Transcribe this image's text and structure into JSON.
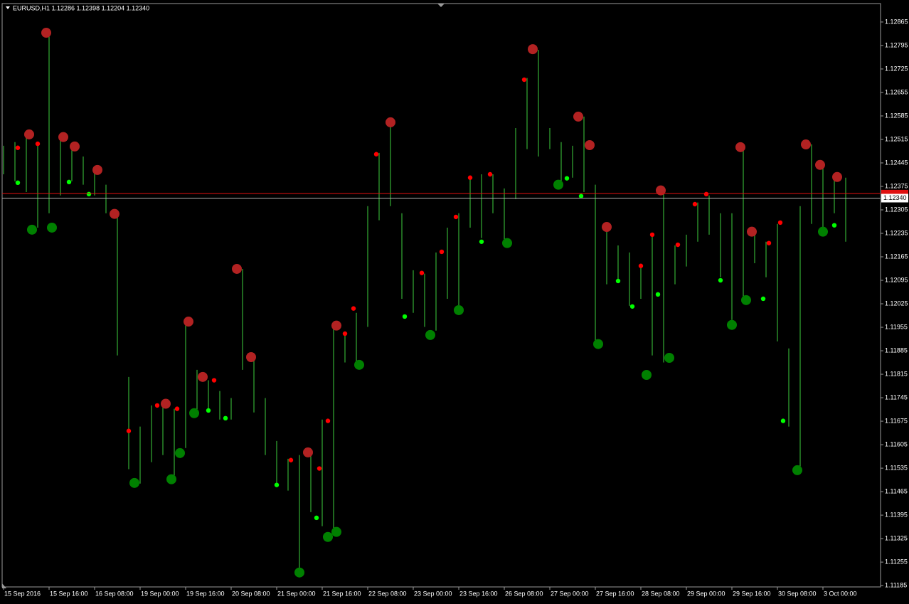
{
  "chart_data": {
    "type": "hlbar",
    "header": "EURUSD,H1  1.12286 1.12398 1.12204 1.12340",
    "color": "#3ecf3e",
    "x": [
      0,
      4,
      8,
      12,
      16,
      20,
      24,
      28,
      32,
      36,
      40,
      44,
      48,
      52,
      56,
      60,
      64,
      68,
      72,
      76,
      80,
      84,
      88,
      92,
      96,
      100,
      104,
      108,
      112,
      116,
      120,
      124,
      128,
      132,
      136,
      140,
      144,
      148,
      152,
      156,
      160,
      164,
      168,
      172,
      176,
      180,
      184,
      188,
      192,
      196,
      200,
      204,
      208,
      212,
      216,
      220,
      224,
      228,
      232,
      236,
      240,
      244,
      248,
      252,
      256,
      260,
      264,
      268,
      272,
      276,
      280,
      284,
      288,
      292,
      296
    ],
    "high": [
      1.12496,
      1.12507,
      1.1253,
      1.12507,
      1.12833,
      1.12517,
      1.12496,
      1.12464,
      1.12433,
      1.1238,
      1.12295,
      1.11807,
      1.11659,
      1.11722,
      1.11733,
      1.11712,
      1.11977,
      1.11828,
      1.11797,
      1.11765,
      1.11744,
      1.12129,
      1.11871,
      1.11744,
      1.11616,
      1.11563,
      1.11574,
      1.11574,
      1.1168,
      1.11956,
      1.11934,
      1.11998,
      1.12316,
      1.12475,
      1.12566,
      1.12295,
      1.12125,
      1.12115,
      1.12178,
      1.12252,
      1.12295,
      1.12401,
      1.12411,
      1.12411,
      1.12369,
      1.12549,
      1.12698,
      1.12782,
      1.12549,
      1.12507,
      1.12496,
      1.12583,
      1.1238,
      1.12252,
      1.12199,
      1.12178,
      1.12136,
      1.12231,
      1.12363,
      1.12199,
      1.12231,
      1.12327,
      1.12348,
      1.12295,
      1.12295,
      1.12492,
      1.1224,
      1.1221,
      1.12263,
      1.11892,
      1.12316,
      1.125,
      1.12439,
      1.12401,
      1.12401
    ],
    "low": [
      1.12411,
      1.1239,
      1.12358,
      1.12252,
      1.12295,
      1.12348,
      1.1239,
      1.1238,
      1.12348,
      1.12295,
      1.11871,
      1.11532,
      1.11489,
      1.11553,
      1.11574,
      1.1151,
      1.11595,
      1.11701,
      1.11712,
      1.1168,
      1.1168,
      1.11828,
      1.11701,
      1.11574,
      1.11489,
      1.11468,
      1.11224,
      1.11404,
      1.11362,
      1.11341,
      1.1185,
      1.1185,
      1.11956,
      1.12274,
      1.12316,
      1.1204,
      1.11998,
      1.11956,
      1.11945,
      1.1204,
      1.12009,
      1.12252,
      1.12221,
      1.12295,
      1.1221,
      1.12337,
      1.12486,
      1.12464,
      1.12486,
      1.1239,
      1.12401,
      1.12358,
      1.11913,
      1.12083,
      1.12093,
      1.12019,
      1.1204,
      1.11871,
      1.1185,
      1.12083,
      1.12136,
      1.1221,
      1.12231,
      1.12104,
      1.11977,
      1.1204,
      1.12146,
      1.12104,
      1.11913,
      1.11659,
      1.11532,
      1.12263,
      1.12252,
      1.12295,
      1.1221
    ],
    "markers": [
      {
        "color": "#b22222",
        "size": "large",
        "x": [
          9,
          15,
          21,
          25,
          33,
          39,
          57,
          65,
          70,
          82,
          87,
          107,
          117,
          136,
          186,
          202,
          206,
          212,
          231,
          259,
          263,
          282,
          287,
          293
        ],
        "values": [
          1.1253,
          1.12833,
          1.12522,
          1.12494,
          1.12424,
          1.12293,
          1.11727,
          1.11972,
          1.11807,
          1.12129,
          1.11866,
          1.11582,
          1.1196,
          1.12566,
          1.12784,
          1.12583,
          1.12498,
          1.12254,
          1.12363,
          1.12492,
          1.1224,
          1.125,
          1.12439,
          1.12403
        ]
      },
      {
        "color": "#008000",
        "size": "large",
        "x": [
          10,
          17,
          46,
          59,
          62,
          67,
          104,
          114,
          117,
          125,
          150,
          160,
          177,
          195,
          209,
          226,
          234,
          256,
          261,
          279,
          288
        ],
        "values": [
          1.12246,
          1.12252,
          1.11491,
          1.11502,
          1.1158,
          1.11699,
          1.11224,
          1.1133,
          1.11345,
          1.11843,
          1.11932,
          1.12006,
          1.12206,
          1.1238,
          1.11905,
          1.11813,
          1.11864,
          1.11962,
          1.12036,
          1.11529,
          1.1224
        ]
      },
      {
        "color": "#ff0000",
        "size": "small",
        "x": [
          5,
          12,
          44,
          54,
          61,
          74,
          101,
          111,
          114,
          120,
          123,
          131,
          147,
          154,
          159,
          164,
          171,
          183,
          224,
          228,
          237,
          243,
          247,
          269,
          273
        ],
        "values": [
          1.1249,
          1.12502,
          1.11646,
          1.11722,
          1.11712,
          1.11797,
          1.11559,
          1.11534,
          1.11676,
          1.11936,
          1.12011,
          1.12471,
          1.12117,
          1.1218,
          1.12284,
          1.12401,
          1.12411,
          1.12693,
          1.12138,
          1.12231,
          1.12201,
          1.12322,
          1.12352,
          1.12206,
          1.12267
        ]
      },
      {
        "color": "#00ff00",
        "size": "small",
        "x": [
          5,
          23,
          30,
          72,
          78,
          96,
          110,
          141,
          168,
          198,
          203,
          216,
          221,
          230,
          252,
          267,
          274,
          292
        ],
        "values": [
          1.12386,
          1.12388,
          1.12352,
          1.11707,
          1.11684,
          1.11485,
          1.11387,
          1.11987,
          1.1221,
          1.12399,
          1.12346,
          1.12093,
          1.12017,
          1.12053,
          1.12095,
          1.1204,
          1.11676,
          1.12259
        ]
      }
    ],
    "ask": 1.12354,
    "bid": {
      "value": 1.1234,
      "label": "1.12340"
    },
    "xlim": [
      -0.5,
      308.25
    ],
    "ylim": [
      1.11181,
      1.1292
    ],
    "yticks": [
      1.12865,
      1.12795,
      1.12725,
      1.12655,
      1.12585,
      1.12515,
      1.12445,
      1.12375,
      1.12305,
      1.12235,
      1.12165,
      1.12095,
      1.12025,
      1.11955,
      1.11885,
      1.11815,
      1.11745,
      1.11675,
      1.11605,
      1.11535,
      1.11465,
      1.11395,
      1.11325,
      1.11255,
      1.11185
    ],
    "xticks": [
      {
        "value": 0,
        "label": "15 Sep 2016"
      },
      {
        "value": 16,
        "label": "15 Sep 16:00"
      },
      {
        "value": 32,
        "label": "16 Sep 08:00"
      },
      {
        "value": 48,
        "label": "19 Sep 00:00"
      },
      {
        "value": 64,
        "label": "19 Sep 16:00"
      },
      {
        "value": 80,
        "label": "20 Sep 08:00"
      },
      {
        "value": 96,
        "label": "21 Sep 00:00"
      },
      {
        "value": 112,
        "label": "21 Sep 16:00"
      },
      {
        "value": 128,
        "label": "22 Sep 08:00"
      },
      {
        "value": 144,
        "label": "23 Sep 00:00"
      },
      {
        "value": 160,
        "label": "23 Sep 16:00"
      },
      {
        "value": 176,
        "label": "26 Sep 08:00"
      },
      {
        "value": 192,
        "label": "27 Sep 00:00"
      },
      {
        "value": 208,
        "label": "27 Sep 16:00"
      },
      {
        "value": 224,
        "label": "28 Sep 08:00"
      },
      {
        "value": 240,
        "label": "29 Sep 00:00"
      },
      {
        "value": 256,
        "label": "29 Sep 16:00"
      },
      {
        "value": 272,
        "label": "30 Sep 08:00"
      },
      {
        "value": 288,
        "label": "3 Oct 00:00"
      }
    ]
  }
}
